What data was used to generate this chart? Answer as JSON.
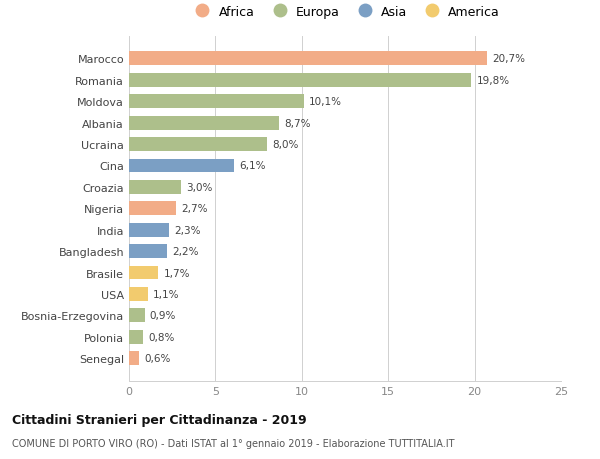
{
  "countries": [
    "Marocco",
    "Romania",
    "Moldova",
    "Albania",
    "Ucraina",
    "Cina",
    "Croazia",
    "Nigeria",
    "India",
    "Bangladesh",
    "Brasile",
    "USA",
    "Bosnia-Erzegovina",
    "Polonia",
    "Senegal"
  ],
  "values": [
    20.7,
    19.8,
    10.1,
    8.7,
    8.0,
    6.1,
    3.0,
    2.7,
    2.3,
    2.2,
    1.7,
    1.1,
    0.9,
    0.8,
    0.6
  ],
  "labels": [
    "20,7%",
    "19,8%",
    "10,1%",
    "8,7%",
    "8,0%",
    "6,1%",
    "3,0%",
    "2,7%",
    "2,3%",
    "2,2%",
    "1,7%",
    "1,1%",
    "0,9%",
    "0,8%",
    "0,6%"
  ],
  "continents": [
    "Africa",
    "Europa",
    "Europa",
    "Europa",
    "Europa",
    "Asia",
    "Europa",
    "Africa",
    "Asia",
    "Asia",
    "America",
    "America",
    "Europa",
    "Europa",
    "Africa"
  ],
  "colors": {
    "Africa": "#F2AC87",
    "Europa": "#ADBF8B",
    "Asia": "#7B9FC4",
    "America": "#F2CB6E"
  },
  "legend_order": [
    "Africa",
    "Europa",
    "Asia",
    "America"
  ],
  "xlim": [
    0,
    25
  ],
  "xticks": [
    0,
    5,
    10,
    15,
    20,
    25
  ],
  "title": "Cittadini Stranieri per Cittadinanza - 2019",
  "subtitle": "COMUNE DI PORTO VIRO (RO) - Dati ISTAT al 1° gennaio 2019 - Elaborazione TUTTITALIA.IT",
  "bg_color": "#ffffff",
  "grid_color": "#d0d0d0",
  "bar_height": 0.65
}
